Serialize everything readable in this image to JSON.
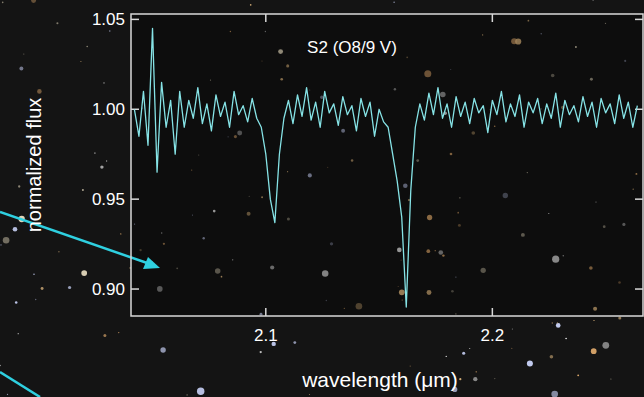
{
  "chart_data": {
    "type": "line",
    "title": "S2 (O8/9 V)",
    "x_label": "wavelength (μm)",
    "y_label": "normalized flux",
    "xlim": [
      2.0405,
      2.2665
    ],
    "ylim": [
      0.885,
      1.053
    ],
    "xticks": [
      2.1,
      2.2
    ],
    "yticks": [
      {
        "value": 0.9,
        "label": "0.90"
      },
      {
        "value": 0.95,
        "label": "0.95"
      },
      {
        "value": 1.0,
        "label": "1.00"
      },
      {
        "value": 1.05,
        "label": "1.05"
      }
    ],
    "grid": false,
    "series": [
      {
        "name": "S2",
        "color": "#86e3e6",
        "x": [
          2.042,
          2.044,
          2.046,
          2.048,
          2.05,
          2.052,
          2.054,
          2.056,
          2.058,
          2.06,
          2.062,
          2.064,
          2.066,
          2.068,
          2.07,
          2.072,
          2.074,
          2.076,
          2.078,
          2.08,
          2.082,
          2.084,
          2.086,
          2.088,
          2.09,
          2.092,
          2.094,
          2.096,
          2.098,
          2.1,
          2.102,
          2.104,
          2.106,
          2.108,
          2.11,
          2.112,
          2.114,
          2.116,
          2.118,
          2.12,
          2.122,
          2.124,
          2.126,
          2.128,
          2.13,
          2.132,
          2.134,
          2.136,
          2.138,
          2.14,
          2.142,
          2.144,
          2.146,
          2.148,
          2.15,
          2.152,
          2.154,
          2.156,
          2.158,
          2.16,
          2.162,
          2.164,
          2.166,
          2.168,
          2.17,
          2.172,
          2.174,
          2.176,
          2.178,
          2.18,
          2.182,
          2.184,
          2.186,
          2.188,
          2.19,
          2.192,
          2.194,
          2.196,
          2.198,
          2.2,
          2.202,
          2.204,
          2.206,
          2.208,
          2.21,
          2.212,
          2.214,
          2.216,
          2.218,
          2.22,
          2.222,
          2.224,
          2.226,
          2.228,
          2.23,
          2.232,
          2.234,
          2.236,
          2.238,
          2.24,
          2.242,
          2.244,
          2.246,
          2.248,
          2.25,
          2.252,
          2.254,
          2.256,
          2.258,
          2.26,
          2.262,
          2.264
        ],
        "values": [
          1.0,
          0.985,
          1.01,
          0.98,
          1.045,
          0.965,
          1.015,
          0.99,
          1.005,
          0.975,
          1.01,
          0.99,
          1.005,
          0.995,
          1.012,
          0.992,
          1.003,
          0.988,
          1.008,
          0.996,
          1.004,
          0.99,
          1.01,
          0.997,
          1.002,
          0.993,
          1.006,
          0.995,
          0.99,
          0.975,
          0.95,
          0.937,
          0.975,
          0.995,
          1.005,
          0.992,
          1.008,
          0.996,
          1.012,
          0.994,
          1.004,
          0.99,
          1.01,
          0.998,
          1.003,
          0.991,
          1.007,
          0.997,
          1.002,
          0.988,
          1.006,
          0.996,
          1.004,
          0.985,
          1.0,
          0.993,
          0.99,
          0.975,
          0.96,
          0.94,
          0.89,
          0.955,
          0.99,
          1.003,
          0.994,
          1.009,
          0.997,
          1.012,
          0.995,
          1.003,
          0.99,
          1.007,
          0.996,
          1.004,
          0.992,
          1.006,
          0.998,
          1.002,
          0.987,
          1.005,
          0.997,
          1.01,
          0.993,
          1.003,
          0.996,
          1.008,
          0.99,
          1.004,
          0.998,
          1.006,
          0.992,
          1.003,
          0.995,
          1.009,
          0.99,
          1.005,
          0.997,
          1.002,
          0.993,
          1.007,
          0.996,
          1.004,
          0.99,
          1.006,
          0.998,
          1.003,
          0.992,
          1.008,
          0.995,
          1.004,
          0.99,
          1.002
        ]
      }
    ]
  }
}
